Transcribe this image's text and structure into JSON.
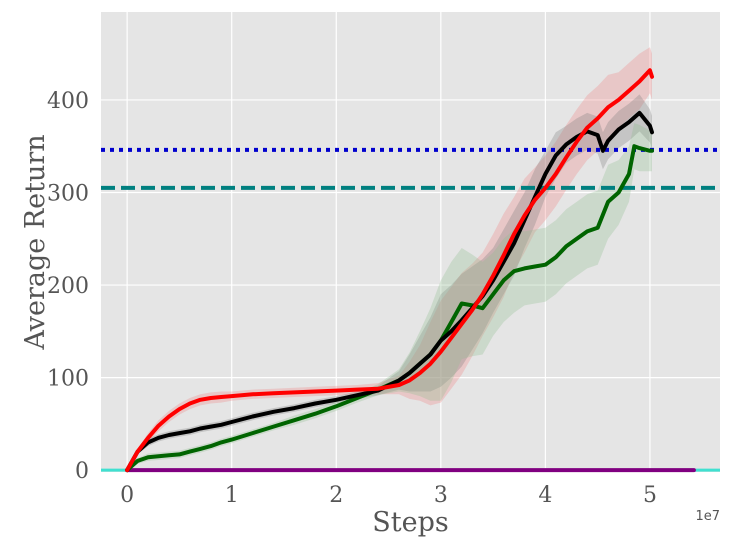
{
  "chart_data": {
    "type": "line",
    "xlabel": "Steps",
    "ylabel": "Average Return",
    "x_offset_text": "1e7",
    "xlim": [
      -0.25,
      5.67
    ],
    "ylim": [
      -2,
      495
    ],
    "xticks": [
      0,
      1,
      2,
      3,
      4,
      5
    ],
    "yticks": [
      0,
      100,
      200,
      300,
      400
    ],
    "grid": true,
    "colors": {
      "background": "#e5e5e5",
      "grid": "#ffffff"
    },
    "series": [
      {
        "color": "#ff0000",
        "band_color": "#f08080",
        "x": [
          0,
          0.1,
          0.2,
          0.3,
          0.4,
          0.5,
          0.6,
          0.7,
          0.8,
          0.9,
          1.0,
          1.2,
          1.4,
          1.6,
          1.8,
          2.0,
          2.2,
          2.4,
          2.6,
          2.7,
          2.8,
          2.9,
          3.0,
          3.1,
          3.2,
          3.3,
          3.4,
          3.5,
          3.6,
          3.7,
          3.8,
          3.9,
          4.0,
          4.1,
          4.2,
          4.3,
          4.4,
          4.5,
          4.6,
          4.7,
          4.8,
          4.9,
          5.0,
          5.02
        ],
        "values": [
          0,
          20,
          35,
          48,
          58,
          66,
          72,
          76,
          78,
          79,
          80,
          82,
          83,
          84,
          85,
          86,
          87,
          88,
          92,
          97,
          105,
          115,
          128,
          143,
          158,
          173,
          190,
          210,
          232,
          255,
          275,
          292,
          305,
          320,
          338,
          355,
          370,
          380,
          392,
          400,
          410,
          420,
          432,
          425
        ],
        "band": [
          0,
          3,
          5,
          6,
          6,
          6,
          6,
          6,
          6,
          6,
          5,
          5,
          5,
          5,
          5,
          5,
          5,
          6,
          10,
          20,
          30,
          45,
          55,
          55,
          55,
          50,
          45,
          45,
          45,
          40,
          40,
          35,
          35,
          35,
          35,
          35,
          35,
          35,
          35,
          30,
          30,
          30,
          25,
          25
        ]
      },
      {
        "color": "#000000",
        "band_color": "#7a7a7a",
        "x": [
          0,
          0.1,
          0.2,
          0.3,
          0.4,
          0.5,
          0.6,
          0.7,
          0.8,
          0.9,
          1.0,
          1.2,
          1.4,
          1.6,
          1.8,
          2.0,
          2.2,
          2.4,
          2.6,
          2.7,
          2.8,
          2.9,
          3.0,
          3.1,
          3.2,
          3.3,
          3.4,
          3.5,
          3.6,
          3.7,
          3.8,
          3.9,
          4.0,
          4.1,
          4.2,
          4.3,
          4.4,
          4.5,
          4.55,
          4.6,
          4.7,
          4.8,
          4.9,
          5.0,
          5.02
        ],
        "values": [
          0,
          20,
          30,
          35,
          38,
          40,
          42,
          45,
          47,
          49,
          52,
          58,
          63,
          67,
          72,
          76,
          81,
          86,
          97,
          105,
          115,
          125,
          140,
          150,
          162,
          175,
          188,
          205,
          225,
          245,
          270,
          295,
          320,
          340,
          352,
          360,
          366,
          362,
          345,
          356,
          368,
          376,
          386,
          372,
          365
        ],
        "band": [
          0,
          3,
          4,
          4,
          4,
          4,
          4,
          4,
          4,
          4,
          4,
          4,
          4,
          4,
          4,
          4,
          4,
          5,
          10,
          20,
          30,
          40,
          50,
          50,
          50,
          45,
          40,
          35,
          35,
          35,
          30,
          30,
          25,
          25,
          20,
          20,
          20,
          20,
          20,
          20,
          20,
          20,
          20,
          18,
          18
        ]
      },
      {
        "color": "#006400",
        "band_color": "#8fbc8f",
        "x": [
          0,
          0.1,
          0.2,
          0.3,
          0.4,
          0.5,
          0.6,
          0.7,
          0.8,
          0.9,
          1.0,
          1.2,
          1.4,
          1.6,
          1.8,
          2.0,
          2.2,
          2.4,
          2.6,
          2.7,
          2.8,
          2.9,
          3.0,
          3.1,
          3.2,
          3.3,
          3.4,
          3.5,
          3.6,
          3.7,
          3.8,
          3.9,
          4.0,
          4.1,
          4.2,
          4.3,
          4.4,
          4.5,
          4.6,
          4.7,
          4.8,
          4.85,
          4.9,
          5.0,
          5.02
        ],
        "values": [
          0,
          10,
          14,
          15,
          16,
          17,
          20,
          23,
          26,
          30,
          33,
          40,
          47,
          54,
          61,
          69,
          78,
          87,
          97,
          105,
          115,
          125,
          140,
          160,
          180,
          178,
          175,
          190,
          205,
          215,
          218,
          220,
          222,
          230,
          242,
          250,
          258,
          262,
          290,
          300,
          320,
          350,
          348,
          345,
          345
        ],
        "band": [
          0,
          3,
          4,
          4,
          4,
          4,
          4,
          4,
          4,
          4,
          4,
          4,
          4,
          5,
          5,
          5,
          5,
          6,
          12,
          22,
          35,
          50,
          65,
          65,
          60,
          55,
          50,
          45,
          45,
          45,
          40,
          40,
          40,
          40,
          40,
          40,
          40,
          40,
          40,
          35,
          30,
          25,
          25,
          22,
          22
        ]
      },
      {
        "color": "#800080",
        "band_color": "#800080",
        "x": [
          0,
          5.42
        ],
        "values": [
          0,
          0
        ],
        "band": [
          0,
          0
        ]
      }
    ],
    "reference_lines": [
      {
        "y": 346,
        "style": "dotted",
        "color": "#0000cd"
      },
      {
        "y": 305,
        "style": "dashed",
        "color": "#008080"
      },
      {
        "y": 0,
        "style": "solid",
        "color": "#40e0d0"
      }
    ]
  }
}
